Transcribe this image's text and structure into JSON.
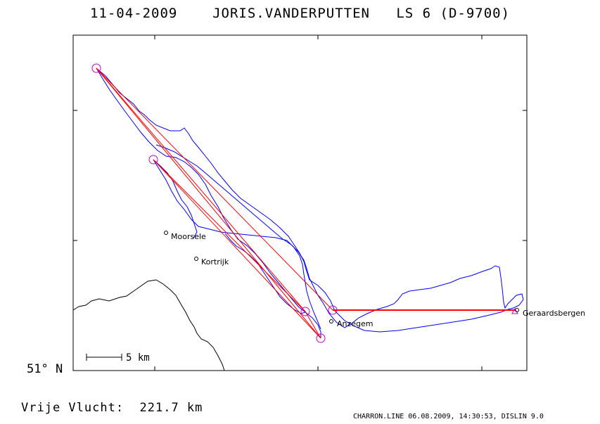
{
  "header": {
    "date": "11-04-2009",
    "pilot": "JORIS.VANDERPUTTEN",
    "glider": "LS 6 (D-9700)"
  },
  "map": {
    "latitude_label": "51° N",
    "scale_label": "5 km",
    "towns": [
      "Moorsele",
      "Kortrijk",
      "Anzegem",
      "Geraardsbergen"
    ],
    "colors": {
      "track": "#0000ff",
      "task": "#ff0000",
      "turnpoint": "#cc00cc",
      "border": "#000000"
    }
  },
  "footer": {
    "distance": "Vrije Vlucht:  221.7 km",
    "credits": "CHARRON.LINE 06.08.2009, 14:30:53, DISLIN 9.0"
  }
}
